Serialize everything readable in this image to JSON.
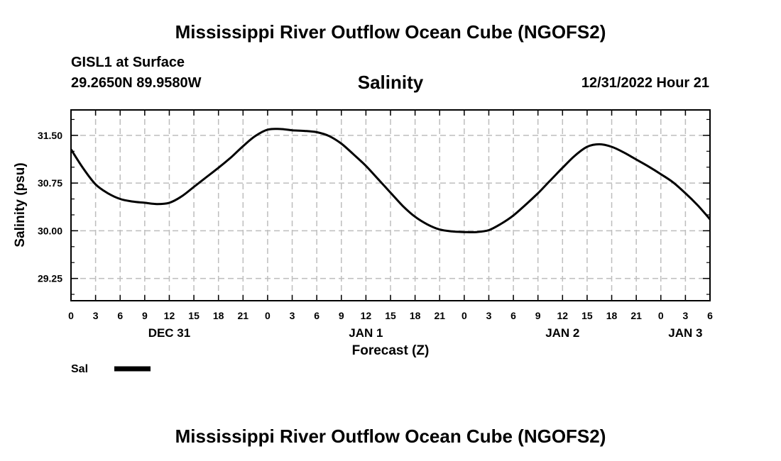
{
  "header": {
    "main_title": "Mississippi River Outflow Ocean Cube (NGOFS2)",
    "station_name": "GISL1 at Surface",
    "station_coords": "29.2650N  89.9580W",
    "chart_title": "Salinity",
    "forecast_time": "12/31/2022 Hour 21"
  },
  "footer": {
    "title": "Mississippi River Outflow Ocean Cube (NGOFS2)"
  },
  "chart_data": {
    "type": "line",
    "title": "Salinity",
    "xlabel": "Forecast (Z)",
    "ylabel": "Salinity (psu)",
    "xlim": [
      0,
      78
    ],
    "ylim": [
      28.9,
      31.9
    ],
    "grid": true,
    "x_tick_step_hours": 3,
    "x_tick_labels": [
      "0",
      "3",
      "6",
      "9",
      "12",
      "15",
      "18",
      "21",
      "0",
      "3",
      "6",
      "9",
      "12",
      "15",
      "18",
      "21",
      "0",
      "3",
      "6",
      "9",
      "12",
      "15",
      "18",
      "21",
      "0",
      "3",
      "6"
    ],
    "date_labels": [
      {
        "label": "DEC 31",
        "hour": 12
      },
      {
        "label": "JAN 1",
        "hour": 36
      },
      {
        "label": "JAN 2",
        "hour": 60
      },
      {
        "label": "JAN 3",
        "hour": 75
      }
    ],
    "y_ticks": [
      29.25,
      30.0,
      30.75,
      31.5
    ],
    "y_tick_labels": [
      "29.25",
      "30.00",
      "30.75",
      "31.50"
    ],
    "y_minor_step": 0.25,
    "legend": {
      "position": "bottom-left",
      "entries": [
        {
          "name": "Sal",
          "color": "#000000"
        }
      ]
    },
    "series": [
      {
        "name": "Sal",
        "color": "#000000",
        "points": [
          [
            0,
            31.28
          ],
          [
            1.5,
            30.98
          ],
          [
            3,
            30.73
          ],
          [
            4.5,
            30.59
          ],
          [
            6,
            30.5
          ],
          [
            7.5,
            30.46
          ],
          [
            9,
            30.44
          ],
          [
            10.5,
            30.42
          ],
          [
            12,
            30.44
          ],
          [
            13.5,
            30.54
          ],
          [
            15,
            30.69
          ],
          [
            16.5,
            30.84
          ],
          [
            18,
            30.99
          ],
          [
            19.5,
            31.15
          ],
          [
            21,
            31.33
          ],
          [
            22.5,
            31.49
          ],
          [
            24,
            31.59
          ],
          [
            25.5,
            31.6
          ],
          [
            27,
            31.58
          ],
          [
            28.5,
            31.57
          ],
          [
            30,
            31.55
          ],
          [
            31.5,
            31.49
          ],
          [
            33,
            31.37
          ],
          [
            34.5,
            31.2
          ],
          [
            36,
            31.02
          ],
          [
            37.5,
            30.81
          ],
          [
            39,
            30.6
          ],
          [
            40.5,
            30.39
          ],
          [
            42,
            30.22
          ],
          [
            43.5,
            30.1
          ],
          [
            45,
            30.02
          ],
          [
            46.5,
            29.99
          ],
          [
            48,
            29.98
          ],
          [
            49.5,
            29.98
          ],
          [
            51,
            30.01
          ],
          [
            52.5,
            30.11
          ],
          [
            54,
            30.24
          ],
          [
            55.5,
            30.41
          ],
          [
            57,
            30.59
          ],
          [
            58.5,
            30.79
          ],
          [
            60,
            30.99
          ],
          [
            61.5,
            31.18
          ],
          [
            63,
            31.32
          ],
          [
            64.5,
            31.36
          ],
          [
            66,
            31.32
          ],
          [
            67.5,
            31.23
          ],
          [
            69,
            31.12
          ],
          [
            70.5,
            31.01
          ],
          [
            72,
            30.89
          ],
          [
            73.5,
            30.76
          ],
          [
            75,
            30.59
          ],
          [
            76.5,
            30.4
          ],
          [
            78,
            30.18
          ]
        ]
      }
    ]
  }
}
